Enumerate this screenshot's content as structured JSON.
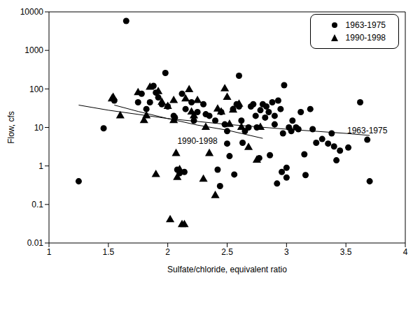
{
  "chart_data": {
    "type": "scatter",
    "xlabel": "Sulfate/chloride, equivalent ratio",
    "ylabel": "Flow, cfs",
    "log": "y",
    "grid": false,
    "legend": "top-right",
    "xlim": [
      1,
      4
    ],
    "xticks": [
      1,
      1.5,
      2,
      2.5,
      3,
      3.5,
      4
    ],
    "ylim": [
      0.01,
      10000
    ],
    "yticks": [
      0.01,
      0.1,
      1,
      10,
      100,
      1000,
      10000
    ],
    "series": [
      {
        "name": "1963-1975",
        "type": "scatter",
        "marker": "circle",
        "color": "#000000",
        "x": [
          1.25,
          1.46,
          1.55,
          1.65,
          1.75,
          1.78,
          1.82,
          1.85,
          1.88,
          1.9,
          1.92,
          1.95,
          1.98,
          2.0,
          2.05,
          2.06,
          2.08,
          2.1,
          2.12,
          2.14,
          2.15,
          2.2,
          2.22,
          2.25,
          2.3,
          2.32,
          2.35,
          2.4,
          2.42,
          2.44,
          2.45,
          2.48,
          2.5,
          2.5,
          2.52,
          2.55,
          2.56,
          2.58,
          2.6,
          2.6,
          2.62,
          2.63,
          2.65,
          2.68,
          2.7,
          2.72,
          2.74,
          2.75,
          2.77,
          2.78,
          2.8,
          2.82,
          2.83,
          2.85,
          2.86,
          2.88,
          2.9,
          2.9,
          2.92,
          2.93,
          2.95,
          2.96,
          2.97,
          2.98,
          3.0,
          3.0,
          3.02,
          3.04,
          3.05,
          3.08,
          3.1,
          3.12,
          3.15,
          3.16,
          3.2,
          3.22,
          3.25,
          3.3,
          3.35,
          3.38,
          3.4,
          3.42,
          3.45,
          3.52,
          3.62,
          3.68,
          3.7
        ],
        "values": [
          0.4,
          9.5,
          50,
          5800,
          45,
          75,
          30,
          45,
          120,
          80,
          60,
          40,
          260,
          35,
          20,
          18,
          0.8,
          0.65,
          75,
          0.7,
          30,
          45,
          15,
          25,
          40,
          22,
          20,
          15,
          0.8,
          0.3,
          25,
          12,
          8,
          3.8,
          1.8,
          30,
          0.6,
          40,
          35,
          220,
          15,
          4,
          8,
          10,
          35,
          40,
          20,
          10,
          1.6,
          28,
          40,
          18,
          35,
          25,
          1.9,
          45,
          20,
          12,
          0.35,
          50,
          30,
          0.7,
          7,
          125,
          0.5,
          0.9,
          10,
          8,
          15,
          10,
          9,
          25,
          2,
          0.58,
          30,
          9,
          4,
          5,
          3.8,
          7,
          3.2,
          1.4,
          2.5,
          3,
          45,
          4.8,
          0.4
        ]
      },
      {
        "name": "1990-1998",
        "type": "scatter",
        "marker": "triangle",
        "color": "#000000",
        "x": [
          1.53,
          1.54,
          1.6,
          1.75,
          1.8,
          1.82,
          1.85,
          1.9,
          1.92,
          1.95,
          2.0,
          2.02,
          2.05,
          2.05,
          2.07,
          2.08,
          2.1,
          2.12,
          2.14,
          2.15,
          2.18,
          2.2,
          2.22,
          2.25,
          2.3,
          2.32,
          2.35,
          2.4,
          2.42,
          2.45,
          2.48,
          2.5,
          2.52,
          2.55,
          2.6,
          2.62,
          2.68,
          2.75,
          2.78
        ],
        "values": [
          55,
          60,
          20,
          80,
          15,
          20,
          110,
          0.6,
          85,
          45,
          35,
          0.04,
          50,
          15,
          2.1,
          0.5,
          0.8,
          0.03,
          0.03,
          55,
          95,
          25,
          20,
          50,
          0.45,
          10,
          2.1,
          0.17,
          30,
          25,
          100,
          60,
          12,
          28,
          40,
          10,
          3,
          1.4,
          10
        ]
      },
      {
        "type": "line",
        "line_style": "solid",
        "color": "#000000",
        "x": [
          1.25,
          1.5,
          2,
          2.5,
          3,
          3.5,
          3.7
        ],
        "values": [
          38,
          28,
          17,
          12,
          9,
          7,
          6.2
        ]
      },
      {
        "type": "line",
        "line_style": "solid",
        "color": "#000000",
        "x": [
          1.55,
          1.75,
          2,
          2.25,
          2.5,
          2.8
        ],
        "values": [
          38,
          26,
          17,
          11.5,
          8.5,
          5.2
        ]
      }
    ],
    "annotations": [
      {
        "text": "1990-1998",
        "x": 2.25,
        "y": 4.5
      },
      {
        "text": "1963-1975",
        "x": 3.68,
        "y": 8.5
      }
    ]
  }
}
